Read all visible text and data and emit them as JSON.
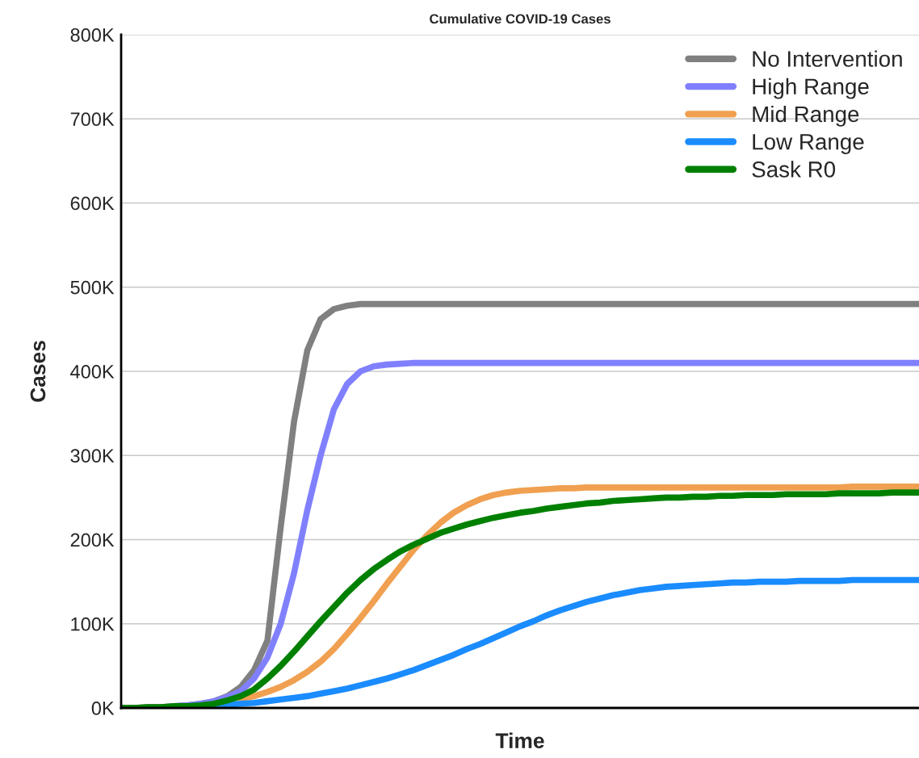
{
  "chart_data": {
    "type": "line",
    "title": "Cumulative COVID-19 Cases",
    "xlabel": "Time",
    "ylabel": "Cases",
    "categories": [
      null,
      null,
      null,
      null,
      null,
      null,
      null,
      null,
      null,
      null,
      null,
      null,
      null,
      null,
      null,
      null,
      null,
      null,
      null,
      null,
      null,
      null,
      null,
      null,
      null,
      null,
      null,
      null,
      null,
      null,
      null,
      null,
      null,
      null,
      null,
      null,
      null,
      null,
      null,
      null,
      null,
      null,
      null,
      null,
      null,
      null,
      null,
      null,
      null,
      null,
      null,
      null,
      null,
      null,
      null,
      null,
      null,
      null,
      null,
      null,
      null
    ],
    "series": [
      {
        "name": "No Intervention",
        "color": "#808080",
        "values": [
          0,
          0,
          1000,
          1000,
          2000,
          3000,
          5000,
          8000,
          14000,
          25000,
          45000,
          80000,
          215000,
          340000,
          425000,
          462000,
          474000,
          478000,
          480000,
          480000,
          480000,
          480000,
          480000,
          480000,
          480000,
          480000,
          480000,
          480000,
          480000,
          480000,
          480000,
          480000,
          480000,
          480000,
          480000,
          480000,
          480000,
          480000,
          480000,
          480000,
          480000,
          480000,
          480000,
          480000,
          480000,
          480000,
          480000,
          480000,
          480000,
          480000,
          480000,
          480000,
          480000,
          480000,
          480000,
          480000,
          480000,
          480000,
          480000,
          480000,
          480000
        ]
      },
      {
        "name": "High Range",
        "color": "#8080ff",
        "values": [
          null,
          null,
          null,
          null,
          2000,
          3000,
          5000,
          8000,
          13000,
          20000,
          35000,
          60000,
          100000,
          160000,
          235000,
          300000,
          355000,
          385000,
          400000,
          406000,
          408000,
          409000,
          410000,
          410000,
          410000,
          410000,
          410000,
          410000,
          410000,
          410000,
          410000,
          410000,
          410000,
          410000,
          410000,
          410000,
          410000,
          410000,
          410000,
          410000,
          410000,
          410000,
          410000,
          410000,
          410000,
          410000,
          410000,
          410000,
          410000,
          410000,
          410000,
          410000,
          410000,
          410000,
          410000,
          410000,
          410000,
          410000,
          410000,
          410000,
          410000
        ]
      },
      {
        "name": "Mid Range",
        "color": "#f0a050",
        "values": [
          null,
          null,
          null,
          null,
          null,
          null,
          null,
          null,
          null,
          11000,
          14000,
          19000,
          25000,
          33000,
          43000,
          55000,
          70000,
          88000,
          107000,
          127000,
          148000,
          168000,
          188000,
          205000,
          220000,
          232000,
          241000,
          248000,
          253000,
          256000,
          258000,
          259000,
          260000,
          261000,
          261000,
          262000,
          262000,
          262000,
          262000,
          262000,
          262000,
          262000,
          262000,
          262000,
          262000,
          262000,
          262000,
          262000,
          262000,
          262000,
          262000,
          262000,
          262000,
          262000,
          262000,
          263000,
          263000,
          263000,
          263000,
          263000,
          263000
        ]
      },
      {
        "name": "Low Range",
        "color": "#1a8cff",
        "values": [
          null,
          null,
          null,
          null,
          null,
          null,
          2000,
          3000,
          4000,
          5000,
          6000,
          8000,
          10000,
          12000,
          14000,
          17000,
          20000,
          23000,
          27000,
          31000,
          35000,
          40000,
          45000,
          51000,
          57000,
          63000,
          70000,
          76000,
          83000,
          90000,
          97000,
          103000,
          110000,
          116000,
          121000,
          126000,
          130000,
          134000,
          137000,
          140000,
          142000,
          144000,
          145000,
          146000,
          147000,
          148000,
          149000,
          149000,
          150000,
          150000,
          150000,
          151000,
          151000,
          151000,
          151000,
          152000,
          152000,
          152000,
          152000,
          152000,
          152000
        ]
      },
      {
        "name": "Sask R0",
        "color": "#008000",
        "values": [
          0,
          0,
          1000,
          1000,
          2000,
          2000,
          3000,
          5000,
          9000,
          14000,
          22000,
          35000,
          50000,
          67000,
          85000,
          103000,
          120000,
          137000,
          152000,
          165000,
          176000,
          186000,
          194000,
          201000,
          208000,
          213000,
          218000,
          222000,
          226000,
          229000,
          232000,
          234000,
          237000,
          239000,
          241000,
          243000,
          244000,
          246000,
          247000,
          248000,
          249000,
          250000,
          250000,
          251000,
          251000,
          252000,
          252000,
          253000,
          253000,
          253000,
          254000,
          254000,
          254000,
          254000,
          255000,
          255000,
          255000,
          255000,
          256000,
          256000,
          256000
        ]
      }
    ],
    "ylim": [
      0,
      800000
    ],
    "yticks": [
      {
        "value": 0,
        "label": "0K"
      },
      {
        "value": 100000,
        "label": "100K"
      },
      {
        "value": 200000,
        "label": "200K"
      },
      {
        "value": 300000,
        "label": "300K"
      },
      {
        "value": 400000,
        "label": "400K"
      },
      {
        "value": 500000,
        "label": "500K"
      },
      {
        "value": 600000,
        "label": "600K"
      },
      {
        "value": 700000,
        "label": "700K"
      },
      {
        "value": 800000,
        "label": "800K"
      }
    ],
    "grid": "y",
    "legend": "top right",
    "tick_labels": "y",
    "marker": "none",
    "line_style": "solid"
  }
}
